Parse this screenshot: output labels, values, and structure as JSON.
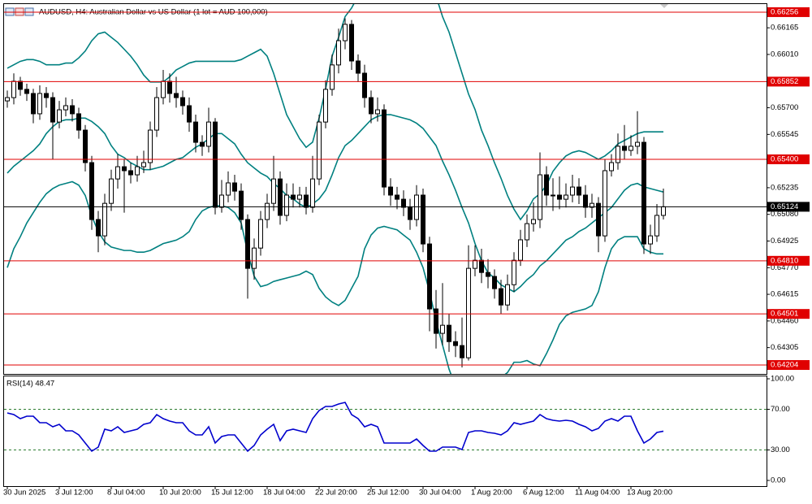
{
  "chart_data": [
    {
      "type": "candlestick",
      "title": "AUDUSD, H4:  Australian Dollar vs US Dollar (1 lot = AUD 100,000)",
      "categories": [
        "30 Jun 2025",
        null,
        null,
        null,
        null,
        null,
        null,
        null,
        "3 Jul 12:00",
        null,
        null,
        null,
        null,
        null,
        null,
        null,
        "8 Jul 04:00",
        null,
        null,
        null,
        null,
        null,
        null,
        null,
        "10 Jul 20:00",
        null,
        null,
        null,
        null,
        null,
        null,
        null,
        "15 Jul 12:00",
        null,
        null,
        null,
        null,
        null,
        null,
        null,
        "18 Jul 04:00",
        null,
        null,
        null,
        null,
        null,
        null,
        null,
        "22 Jul 20:00",
        null,
        null,
        null,
        null,
        null,
        null,
        null,
        "25 Jul 12:00",
        null,
        null,
        null,
        null,
        null,
        null,
        null,
        "30 Jul 04:00",
        null,
        null,
        null,
        null,
        null,
        null,
        null,
        "1 Aug 20:00",
        null,
        null,
        null,
        null,
        null,
        null,
        null,
        "6 Aug 12:00",
        null,
        null,
        null,
        null,
        null,
        null,
        null,
        "11 Aug 04:00",
        null,
        null,
        null,
        null,
        null,
        null,
        null,
        "13 Aug 20:00",
        null,
        null,
        null,
        null,
        null
      ],
      "open": [
        0.6574,
        0.65759,
        0.65854,
        0.65807,
        0.65783,
        0.65665,
        0.65783,
        0.65759,
        0.65617,
        0.65688,
        0.65712,
        0.65665,
        0.6557,
        0.65381,
        0.6505,
        0.64955,
        0.65144,
        0.65286,
        0.65357,
        0.65334,
        0.6531,
        0.65357,
        0.65381,
        0.6557,
        0.65759,
        0.65854,
        0.65783,
        0.65759,
        0.65712,
        0.65617,
        0.65499,
        0.65476,
        0.65617,
        0.65121,
        0.65192,
        0.65263,
        0.65215,
        0.6505,
        0.64766,
        0.64884,
        0.6505,
        0.65144,
        0.65286,
        0.65074,
        0.65192,
        0.65168,
        0.65192,
        0.65121,
        0.65286,
        0.65617,
        0.65807,
        0.65949,
        0.6609,
        0.66185,
        0.65972,
        0.65901,
        0.65759,
        0.65665,
        0.65688,
        0.65239,
        0.65192,
        0.65168,
        0.65121,
        0.6505,
        0.65192,
        0.64908,
        0.6453,
        0.64388,
        0.64435,
        0.6434,
        0.64317,
        0.64246,
        0.64766,
        0.64813,
        0.64742,
        0.64719,
        0.64648,
        0.64553,
        0.64671,
        0.64813,
        0.64932,
        0.65026,
        0.6505,
        0.6531,
        0.65192,
        0.65192,
        0.65168,
        0.65192,
        0.65239,
        0.65192,
        0.65121,
        0.65144,
        0.64955,
        0.65334,
        0.65381,
        0.65476,
        0.65452,
        0.65476,
        0.65499,
        0.64908,
        0.64955,
        0.65074
      ],
      "high": [
        0.658,
        0.659,
        0.6588,
        0.6584,
        0.6581,
        0.6583,
        0.6582,
        0.6579,
        0.6574,
        0.6576,
        0.6575,
        0.657,
        0.656,
        0.6542,
        0.651,
        0.652,
        0.6534,
        0.6543,
        0.654,
        0.6538,
        0.6542,
        0.6545,
        0.6562,
        0.6582,
        0.6592,
        0.659,
        0.6588,
        0.658,
        0.6576,
        0.6566,
        0.6554,
        0.657,
        0.6564,
        0.6528,
        0.6533,
        0.6531,
        0.6526,
        0.6508,
        0.6494,
        0.651,
        0.652,
        0.6542,
        0.6533,
        0.6526,
        0.6526,
        0.6524,
        0.6524,
        0.6542,
        0.6566,
        0.6586,
        0.6601,
        0.6616,
        0.6622,
        0.6621,
        0.6601,
        0.6595,
        0.658,
        0.6576,
        0.6572,
        0.6529,
        0.6524,
        0.6522,
        0.6517,
        0.6525,
        0.6523,
        0.6495,
        0.6464,
        0.6468,
        0.645,
        0.644,
        0.6448,
        0.649,
        0.649,
        0.6488,
        0.6482,
        0.6476,
        0.647,
        0.6473,
        0.6486,
        0.6499,
        0.6508,
        0.6515,
        0.6544,
        0.6536,
        0.6529,
        0.653,
        0.6526,
        0.6531,
        0.6529,
        0.6525,
        0.652,
        0.6518,
        0.654,
        0.6543,
        0.6555,
        0.656,
        0.6554,
        0.6568,
        0.6553,
        0.6502,
        0.6514,
        0.6523
      ],
      "low": [
        0.657,
        0.6572,
        0.6577,
        0.6574,
        0.6561,
        0.6563,
        0.657,
        0.654,
        0.6558,
        0.6565,
        0.6562,
        0.6552,
        0.6533,
        0.6499,
        0.6486,
        0.649,
        0.651,
        0.6523,
        0.6509,
        0.6526,
        0.6527,
        0.6532,
        0.6534,
        0.6553,
        0.6572,
        0.6573,
        0.657,
        0.6566,
        0.6556,
        0.6544,
        0.6542,
        0.6544,
        0.6508,
        0.6509,
        0.6515,
        0.6516,
        0.6499,
        0.6459,
        0.647,
        0.6484,
        0.65,
        0.651,
        0.6502,
        0.6504,
        0.6512,
        0.6512,
        0.6508,
        0.6509,
        0.6525,
        0.6558,
        0.6577,
        0.659,
        0.6604,
        0.6592,
        0.6585,
        0.657,
        0.6561,
        0.6562,
        0.6519,
        0.6513,
        0.6511,
        0.6507,
        0.6499,
        0.6501,
        0.6486,
        0.644,
        0.643,
        0.6432,
        0.6428,
        0.6425,
        0.6419,
        0.6423,
        0.6472,
        0.6468,
        0.6465,
        0.6459,
        0.645,
        0.6452,
        0.6463,
        0.6478,
        0.6489,
        0.6498,
        0.65,
        0.6513,
        0.651,
        0.6511,
        0.6512,
        0.6515,
        0.6514,
        0.6506,
        0.6506,
        0.6486,
        0.6492,
        0.653,
        0.6534,
        0.654,
        0.6542,
        0.6543,
        0.6485,
        0.6485,
        0.6492,
        0.6505
      ],
      "close": [
        0.65759,
        0.65854,
        0.65807,
        0.65783,
        0.65665,
        0.65783,
        0.65759,
        0.65617,
        0.65688,
        0.65712,
        0.65665,
        0.6557,
        0.65381,
        0.6505,
        0.64955,
        0.65144,
        0.65286,
        0.65357,
        0.65334,
        0.6531,
        0.65357,
        0.65381,
        0.6557,
        0.65759,
        0.65854,
        0.65783,
        0.65759,
        0.65712,
        0.65617,
        0.65499,
        0.65476,
        0.65617,
        0.65121,
        0.65192,
        0.65263,
        0.65215,
        0.6505,
        0.64766,
        0.64884,
        0.6505,
        0.65144,
        0.65286,
        0.65074,
        0.65192,
        0.65168,
        0.65192,
        0.65121,
        0.65286,
        0.65617,
        0.65807,
        0.65949,
        0.6609,
        0.66185,
        0.65972,
        0.65901,
        0.65759,
        0.65665,
        0.65688,
        0.65239,
        0.65192,
        0.65168,
        0.65121,
        0.6505,
        0.65192,
        0.64908,
        0.6453,
        0.64388,
        0.64435,
        0.6434,
        0.64317,
        0.64246,
        0.64766,
        0.64813,
        0.64742,
        0.64719,
        0.64648,
        0.64553,
        0.64671,
        0.64813,
        0.64932,
        0.65026,
        0.6505,
        0.6531,
        0.65192,
        0.65192,
        0.65168,
        0.65192,
        0.65239,
        0.65192,
        0.65121,
        0.65144,
        0.64955,
        0.65334,
        0.65381,
        0.65476,
        0.65452,
        0.65476,
        0.65499,
        0.64908,
        0.64955,
        0.65074,
        0.65124
      ],
      "up_color": "#ffffff",
      "down_color": "#000000",
      "series": [
        {
          "color": "#008080",
          "values": [
            0.6593,
            0.6595,
            0.6597,
            0.6598,
            0.6598,
            0.6597,
            0.6595,
            0.6595,
            0.6595,
            0.6596,
            0.6596,
            0.6599,
            0.6603,
            0.6609,
            0.6613,
            0.6614,
            0.6611,
            0.6608,
            0.6604,
            0.66,
            0.6595,
            0.6589,
            0.6585,
            0.6585,
            0.6585,
            0.6588,
            0.6592,
            0.6594,
            0.6596,
            0.6597,
            0.6597,
            0.6597,
            0.6597,
            0.6597,
            0.6597,
            0.6597,
            0.6598,
            0.66,
            0.6602,
            0.6604,
            0.66,
            0.659,
            0.6578,
            0.6566,
            0.6559,
            0.6552,
            0.6547,
            0.655,
            0.6564,
            0.6581,
            0.66,
            0.6611,
            0.6623,
            0.6628,
            0.6635,
            0.6635,
            0.6635,
            0.6635,
            0.6635,
            0.6635,
            0.6635,
            0.6635,
            0.6635,
            0.6635,
            0.6635,
            0.6635,
            0.6635,
            0.6623,
            0.6614,
            0.6602,
            0.659,
            0.6578,
            0.6569,
            0.6557,
            0.6548,
            0.6538,
            0.6529,
            0.6519,
            0.6511,
            0.6505,
            0.651,
            0.6517,
            0.652,
            0.6525,
            0.6533,
            0.6538,
            0.6542,
            0.6544,
            0.6545,
            0.6544,
            0.6542,
            0.654,
            0.6542,
            0.6545,
            0.6549,
            0.6551,
            0.6553,
            0.6555,
            0.6556,
            0.6556,
            0.6556,
            0.6556
          ]
        },
        {
          "color": "#008080",
          "values": [
            0.6532,
            0.6536,
            0.6539,
            0.6542,
            0.6545,
            0.6549,
            0.6555,
            0.6559,
            0.6562,
            0.6563,
            0.6563,
            0.6564,
            0.6564,
            0.6562,
            0.6559,
            0.6555,
            0.6548,
            0.6543,
            0.6541,
            0.6538,
            0.6536,
            0.6534,
            0.6534,
            0.6535,
            0.6536,
            0.6538,
            0.654,
            0.6541,
            0.6544,
            0.6547,
            0.6549,
            0.6552,
            0.6555,
            0.6555,
            0.6552,
            0.6549,
            0.6543,
            0.6538,
            0.6535,
            0.6532,
            0.653,
            0.6526,
            0.6523,
            0.6519,
            0.6517,
            0.6514,
            0.6512,
            0.6514,
            0.6517,
            0.6522,
            0.6531,
            0.6541,
            0.6548,
            0.6551,
            0.6555,
            0.6559,
            0.6563,
            0.6565,
            0.6566,
            0.6566,
            0.6565,
            0.6564,
            0.6563,
            0.6561,
            0.6558,
            0.6553,
            0.6548,
            0.6539,
            0.6531,
            0.6522,
            0.6512,
            0.6503,
            0.6491,
            0.6481,
            0.6474,
            0.6471,
            0.6467,
            0.6465,
            0.6463,
            0.6466,
            0.647,
            0.6473,
            0.6478,
            0.6481,
            0.6485,
            0.6489,
            0.6493,
            0.6495,
            0.6498,
            0.65,
            0.6503,
            0.6506,
            0.6509,
            0.6512,
            0.6517,
            0.6522,
            0.6525,
            0.6526,
            0.6524,
            0.6523,
            0.6522,
            0.6521
          ]
        },
        {
          "color": "#008080",
          "values": [
            0.6477,
            0.6488,
            0.6495,
            0.6503,
            0.6509,
            0.6515,
            0.652,
            0.6523,
            0.6525,
            0.6526,
            0.6527,
            0.6525,
            0.6519,
            0.6507,
            0.6498,
            0.6492,
            0.6489,
            0.6488,
            0.6487,
            0.6487,
            0.6486,
            0.6486,
            0.6487,
            0.6489,
            0.6491,
            0.6492,
            0.6493,
            0.6495,
            0.6498,
            0.6505,
            0.651,
            0.6512,
            0.6513,
            0.6513,
            0.6512,
            0.6509,
            0.6503,
            0.6486,
            0.6472,
            0.6466,
            0.6467,
            0.6469,
            0.647,
            0.6471,
            0.6472,
            0.6473,
            0.6475,
            0.6473,
            0.6465,
            0.646,
            0.6457,
            0.6455,
            0.6458,
            0.6465,
            0.6472,
            0.6488,
            0.6496,
            0.65,
            0.6501,
            0.65,
            0.6499,
            0.6496,
            0.6493,
            0.6486,
            0.6477,
            0.6463,
            0.6446,
            0.6432,
            0.6418,
            0.6408,
            0.6406,
            0.6406,
            0.6406,
            0.6406,
            0.6406,
            0.6408,
            0.6413,
            0.6416,
            0.6422,
            0.6422,
            0.6423,
            0.6421,
            0.642,
            0.6427,
            0.6435,
            0.6444,
            0.6449,
            0.6451,
            0.6452,
            0.6453,
            0.6455,
            0.6463,
            0.6477,
            0.6488,
            0.6493,
            0.6495,
            0.6495,
            0.6495,
            0.6488,
            0.6486,
            0.6485,
            0.6485
          ]
        }
      ],
      "ylim": [
        0.64152,
        0.66303
      ],
      "yticks": [
        0.66165,
        {
          "value": 0.6601,
          "label": "0.66010"
        },
        {
          "value": 0.657,
          "label": "0.65700"
        },
        0.65545,
        0.65235,
        {
          "value": 0.6508,
          "label": "0.65080"
        },
        0.64925,
        {
          "value": 0.6477,
          "label": "0.64770"
        },
        0.64615,
        {
          "value": 0.6446,
          "label": "0.64460"
        },
        0.64305
      ],
      "levels": [
        0.66256,
        0.65852,
        {
          "value": 0.654,
          "label": "0.65400"
        },
        {
          "value": 0.6481,
          "label": "0.64810"
        },
        0.64501,
        0.64204
      ],
      "level_color": "#e00000",
      "current": 0.65124,
      "current_color": "#000000"
    },
    {
      "type": "line",
      "title": "RSI(14) 48.47",
      "series": [
        {
          "color": "#0000cd",
          "values": [
            66.4,
            64.8,
            60.8,
            63.2,
            63.2,
            56.8,
            56.8,
            52.8,
            55.2,
            48.8,
            48.8,
            44.8,
            36.8,
            28.8,
            32.8,
            50.4,
            48.8,
            52.8,
            47.2,
            48.8,
            50.4,
            55.2,
            56.8,
            64.8,
            60.8,
            58.4,
            56.8,
            56.8,
            48.8,
            44.8,
            44.8,
            52.8,
            36.8,
            43.2,
            44.8,
            44.8,
            36.8,
            28.8,
            34.4,
            44.8,
            50.4,
            55.2,
            39.2,
            48.8,
            50.4,
            48.8,
            47.2,
            60.8,
            68.8,
            72.8,
            72.8,
            75.2,
            76.8,
            64.8,
            60.8,
            52.8,
            55.2,
            52.8,
            36.8,
            36.8,
            36.8,
            36.8,
            36.8,
            40.8,
            34.4,
            28.8,
            28.8,
            32.8,
            32.8,
            32.8,
            30.4,
            47.2,
            48.8,
            48.8,
            47.2,
            46.4,
            44.8,
            48.8,
            56.8,
            55.2,
            56.8,
            58.4,
            64.8,
            60.8,
            59.2,
            58.4,
            59.2,
            58.4,
            55.2,
            52.8,
            48.8,
            51.2,
            58.4,
            60.8,
            58.4,
            63.2,
            63.2,
            48.8,
            36.8,
            40.8,
            47.2,
            48.47
          ]
        }
      ],
      "ylim": [
        0,
        100
      ],
      "yticks": [
        {
          "value": 100,
          "label": "100.00"
        },
        {
          "value": 70,
          "label": "70.00"
        },
        {
          "value": 30,
          "label": "30.00"
        },
        {
          "value": 0,
          "label": "0.00"
        }
      ],
      "levels": [
        70,
        30
      ]
    }
  ]
}
